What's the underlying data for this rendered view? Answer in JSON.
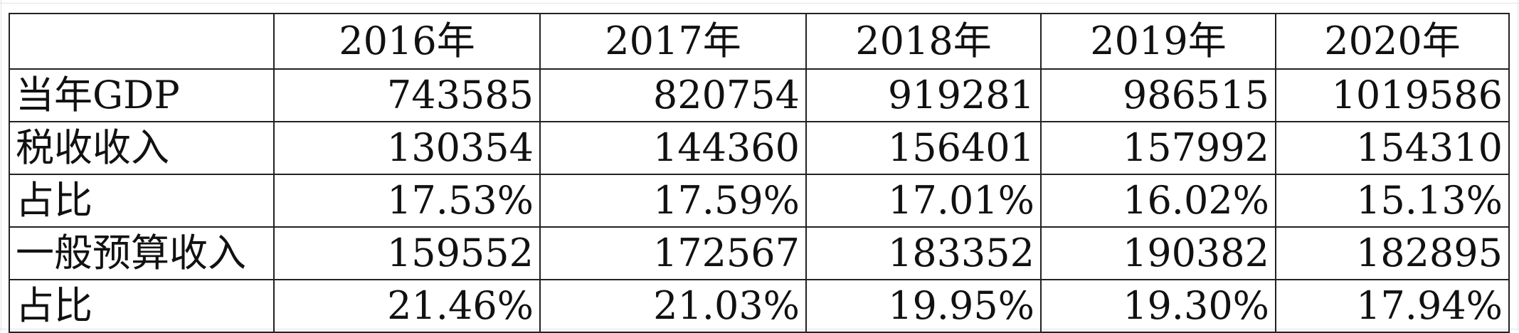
{
  "table": {
    "headers": [
      "",
      "2016年",
      "2017年",
      "2018年",
      "2019年",
      "2020年"
    ],
    "rows": [
      {
        "label": "当年GDP",
        "values": [
          "743585",
          "820754",
          "919281",
          "986515",
          "1019586"
        ]
      },
      {
        "label": "税收收入",
        "values": [
          "130354",
          "144360",
          "156401",
          "157992",
          "154310"
        ]
      },
      {
        "label": "占比",
        "values": [
          "17.53%",
          "17.59%",
          "17.01%",
          "16.02%",
          "15.13%"
        ]
      },
      {
        "label": "一般预算收入",
        "values": [
          "159552",
          "172567",
          "183352",
          "190382",
          "182895"
        ]
      },
      {
        "label": "占比",
        "values": [
          "21.46%",
          "21.03%",
          "19.95%",
          "19.30%",
          "17.94%"
        ]
      }
    ]
  }
}
